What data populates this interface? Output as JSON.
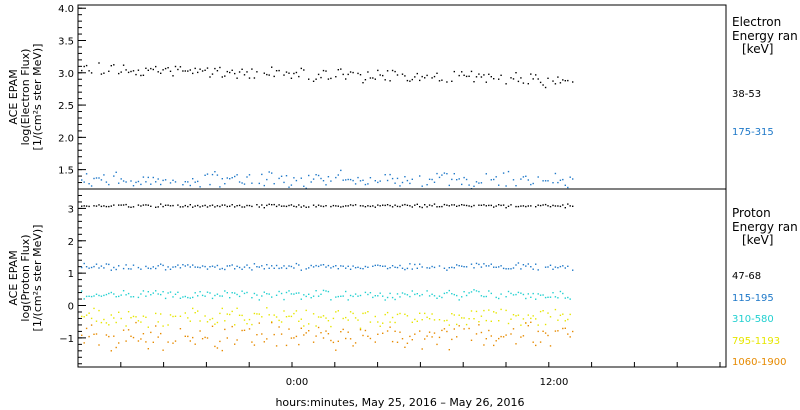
{
  "chart_data": [
    {
      "type": "scatter",
      "panel": "electron",
      "ylabel_lines": [
        "ACE EPAM",
        "log(Electron Flux)",
        "[1/(cm²s ster MeV)]"
      ],
      "ylim": [
        1.2,
        4.05
      ],
      "yticks": [
        "1.5",
        "2.0",
        "2.5",
        "3.0",
        "3.5",
        "4.0"
      ],
      "ytick_values": [
        1.5,
        2.0,
        2.5,
        3.0,
        3.5,
        4.0
      ],
      "legend_title_lines": [
        "Electron",
        "Energy ran",
        "[keV]"
      ],
      "series": [
        {
          "name": "38-53",
          "color": "#000000",
          "level": 2.97,
          "spread": 0.12,
          "start": 3.08,
          "end": 2.88
        },
        {
          "name": "175-315",
          "color": "#1e78c8",
          "level": 1.35,
          "spread": 0.16
        }
      ]
    },
    {
      "type": "scatter",
      "panel": "proton",
      "ylabel_lines": [
        "ACE EPAM",
        "log(Proton Flux)",
        "[1/(cm²s ster MeV)]"
      ],
      "ylim": [
        -1.9,
        3.6
      ],
      "yticks": [
        "−1",
        "0",
        "1",
        "2",
        "3"
      ],
      "ytick_values": [
        -1,
        0,
        1,
        2,
        3
      ],
      "legend_title_lines": [
        "Proton",
        "Energy ran",
        "[keV]"
      ],
      "series": [
        {
          "name": "47-68",
          "color": "#000000",
          "level": 3.1,
          "spread": 0.06
        },
        {
          "name": "115-195",
          "color": "#1e78c8",
          "level": 1.22,
          "spread": 0.12
        },
        {
          "name": "310-580",
          "color": "#22d0d0",
          "level": 0.35,
          "spread": 0.18
        },
        {
          "name": "795-1193",
          "color": "#e6e600",
          "level": -0.35,
          "spread": 0.35
        },
        {
          "name": "1060-1900",
          "color": "#e68a00",
          "level": -0.95,
          "spread": 0.5
        }
      ]
    }
  ],
  "x_axis": {
    "ticks": [
      "0:00",
      "12:00"
    ],
    "label": "hours:minutes, May 25, 2016 – May 26, 2016"
  }
}
